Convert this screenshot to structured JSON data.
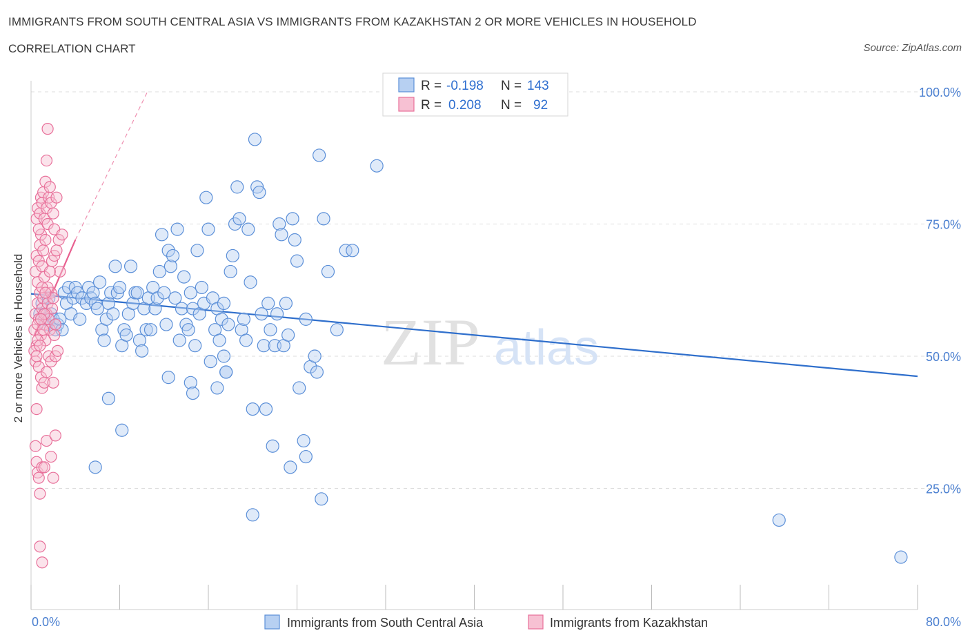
{
  "header": {
    "title": "IMMIGRANTS FROM SOUTH CENTRAL ASIA VS IMMIGRANTS FROM KAZAKHSTAN 2 OR MORE VEHICLES IN HOUSEHOLD",
    "subtitle": "CORRELATION CHART",
    "source": "Source: ZipAtlas.com"
  },
  "watermark": {
    "zip": "ZIP",
    "atlas": "atlas"
  },
  "legend": {
    "series1": {
      "r_label": "R =",
      "r_value": "-0.198",
      "n_label": "N =",
      "n_value": "143"
    },
    "series2": {
      "r_label": "R =",
      "r_value": "0.208",
      "n_label": "N =",
      "n_value": "92"
    }
  },
  "colors": {
    "blue": "#5b8fd8",
    "blue_fill": "#b7d0f2",
    "blue_line": "#2f6fcc",
    "pink": "#e8709a",
    "pink_fill": "#f7c1d3",
    "pink_line": "#e8608f",
    "axis_text": "#4a7fd0",
    "grid": "#dcdcdc"
  },
  "chart_data": {
    "type": "scatter",
    "xlabel": "",
    "ylabel": "2 or more Vehicles in Household",
    "xlim": [
      0,
      80
    ],
    "ylim": [
      0,
      100
    ],
    "x_tick_labels": [
      "0.0%",
      "80.0%"
    ],
    "y_ticks": [
      25,
      50,
      75,
      100
    ],
    "y_tick_labels": [
      "25.0%",
      "50.0%",
      "75.0%",
      "100.0%"
    ],
    "grid": true,
    "legend_position": "top-center",
    "series": [
      {
        "name": "Immigrants from South Central Asia",
        "color": "#5b8fd8",
        "trend": {
          "x": [
            0,
            80
          ],
          "y": [
            61.8,
            46.2
          ]
        },
        "points": [
          [
            0.8,
            58
          ],
          [
            1.0,
            60
          ],
          [
            1.2,
            57
          ],
          [
            1.4,
            56
          ],
          [
            1.6,
            61
          ],
          [
            1.8,
            58
          ],
          [
            2.0,
            57
          ],
          [
            2.2,
            55
          ],
          [
            2.4,
            56
          ],
          [
            2.6,
            57
          ],
          [
            2.8,
            55
          ],
          [
            3.0,
            62
          ],
          [
            3.2,
            60
          ],
          [
            3.4,
            63
          ],
          [
            3.6,
            58
          ],
          [
            3.8,
            61
          ],
          [
            4.0,
            63
          ],
          [
            4.2,
            62
          ],
          [
            4.4,
            57
          ],
          [
            4.6,
            61
          ],
          [
            5.0,
            60
          ],
          [
            5.2,
            63
          ],
          [
            5.4,
            61
          ],
          [
            5.6,
            62
          ],
          [
            5.8,
            60
          ],
          [
            6.0,
            59
          ],
          [
            6.2,
            64
          ],
          [
            6.4,
            55
          ],
          [
            6.6,
            53
          ],
          [
            6.8,
            57
          ],
          [
            7.0,
            60
          ],
          [
            7.2,
            62
          ],
          [
            7.4,
            58
          ],
          [
            7.6,
            67
          ],
          [
            7.8,
            62
          ],
          [
            8.0,
            63
          ],
          [
            8.2,
            52
          ],
          [
            8.4,
            55
          ],
          [
            8.6,
            54
          ],
          [
            8.8,
            58
          ],
          [
            9.0,
            67
          ],
          [
            9.2,
            60
          ],
          [
            9.4,
            62
          ],
          [
            9.6,
            62
          ],
          [
            9.8,
            53
          ],
          [
            10.0,
            51
          ],
          [
            10.2,
            59
          ],
          [
            10.4,
            55
          ],
          [
            10.6,
            61
          ],
          [
            10.8,
            55
          ],
          [
            11.0,
            63
          ],
          [
            11.2,
            59
          ],
          [
            11.4,
            61
          ],
          [
            11.6,
            66
          ],
          [
            11.8,
            73
          ],
          [
            12.0,
            62
          ],
          [
            12.2,
            56
          ],
          [
            12.4,
            70
          ],
          [
            12.6,
            67
          ],
          [
            12.8,
            69
          ],
          [
            13.0,
            61
          ],
          [
            13.2,
            74
          ],
          [
            13.4,
            53
          ],
          [
            13.6,
            59
          ],
          [
            13.8,
            65
          ],
          [
            14.0,
            56
          ],
          [
            14.2,
            55
          ],
          [
            14.4,
            62
          ],
          [
            14.6,
            59
          ],
          [
            14.8,
            52
          ],
          [
            15.0,
            70
          ],
          [
            15.2,
            58
          ],
          [
            15.4,
            63
          ],
          [
            15.6,
            60
          ],
          [
            15.8,
            80
          ],
          [
            16.0,
            74
          ],
          [
            16.2,
            49
          ],
          [
            16.4,
            61
          ],
          [
            16.6,
            55
          ],
          [
            16.8,
            59
          ],
          [
            17.0,
            53
          ],
          [
            17.2,
            57
          ],
          [
            17.4,
            60
          ],
          [
            17.6,
            47
          ],
          [
            17.8,
            56
          ],
          [
            18.0,
            66
          ],
          [
            18.2,
            69
          ],
          [
            18.4,
            75
          ],
          [
            18.6,
            82
          ],
          [
            18.8,
            76
          ],
          [
            19.0,
            55
          ],
          [
            19.2,
            57
          ],
          [
            19.4,
            53
          ],
          [
            19.6,
            74
          ],
          [
            19.8,
            64
          ],
          [
            20.0,
            40
          ],
          [
            20.2,
            91
          ],
          [
            20.4,
            82
          ],
          [
            20.6,
            81
          ],
          [
            20.8,
            58
          ],
          [
            21.0,
            52
          ],
          [
            21.2,
            40
          ],
          [
            21.4,
            60
          ],
          [
            21.6,
            55
          ],
          [
            21.8,
            33
          ],
          [
            22.0,
            52
          ],
          [
            22.2,
            58
          ],
          [
            22.4,
            75
          ],
          [
            22.6,
            73
          ],
          [
            22.8,
            52
          ],
          [
            23.0,
            60
          ],
          [
            23.2,
            54
          ],
          [
            23.4,
            29
          ],
          [
            23.6,
            76
          ],
          [
            23.8,
            72
          ],
          [
            24.0,
            68
          ],
          [
            24.2,
            44
          ],
          [
            24.6,
            34
          ],
          [
            24.8,
            31
          ],
          [
            25.2,
            48
          ],
          [
            25.6,
            50
          ],
          [
            25.8,
            47
          ],
          [
            26.0,
            88
          ],
          [
            26.2,
            23
          ],
          [
            26.4,
            76
          ],
          [
            26.8,
            66
          ],
          [
            27.6,
            55
          ],
          [
            28.4,
            70
          ],
          [
            29.0,
            70
          ],
          [
            31.2,
            86
          ],
          [
            5.8,
            29
          ],
          [
            7.0,
            42
          ],
          [
            8.2,
            36
          ],
          [
            12.4,
            46
          ],
          [
            14.4,
            45
          ],
          [
            14.6,
            43
          ],
          [
            20.0,
            20
          ],
          [
            16.8,
            44
          ],
          [
            17.4,
            50
          ],
          [
            17.6,
            47
          ],
          [
            67.5,
            19
          ],
          [
            78.5,
            12
          ],
          [
            24.8,
            57
          ]
        ]
      },
      {
        "name": "Immigrants from Kazakhstan",
        "color": "#e8709a",
        "trend": {
          "x": [
            0.3,
            4.0
          ],
          "y": [
            54.0,
            72.0
          ],
          "dashed_to": {
            "x": 10.5,
            "y": 100
          }
        },
        "points": [
          [
            0.3,
            55
          ],
          [
            0.4,
            58
          ],
          [
            0.5,
            52
          ],
          [
            0.6,
            60
          ],
          [
            0.7,
            57
          ],
          [
            0.8,
            62
          ],
          [
            0.9,
            54
          ],
          [
            1.0,
            59
          ],
          [
            1.1,
            61
          ],
          [
            1.2,
            56
          ],
          [
            1.3,
            53
          ],
          [
            1.4,
            58
          ],
          [
            1.5,
            60
          ],
          [
            1.6,
            57
          ],
          [
            1.7,
            55
          ],
          [
            1.8,
            62
          ],
          [
            1.9,
            59
          ],
          [
            2.0,
            61
          ],
          [
            2.1,
            54
          ],
          [
            2.2,
            56
          ],
          [
            0.4,
            66
          ],
          [
            0.5,
            69
          ],
          [
            0.6,
            64
          ],
          [
            0.7,
            68
          ],
          [
            0.8,
            71
          ],
          [
            0.9,
            73
          ],
          [
            1.0,
            67
          ],
          [
            1.1,
            70
          ],
          [
            1.2,
            65
          ],
          [
            1.3,
            72
          ],
          [
            0.5,
            76
          ],
          [
            0.6,
            78
          ],
          [
            0.7,
            74
          ],
          [
            0.8,
            77
          ],
          [
            0.9,
            80
          ],
          [
            1.0,
            79
          ],
          [
            1.1,
            81
          ],
          [
            1.2,
            76
          ],
          [
            1.3,
            83
          ],
          [
            1.4,
            78
          ],
          [
            1.5,
            75
          ],
          [
            1.6,
            80
          ],
          [
            1.7,
            82
          ],
          [
            1.8,
            79
          ],
          [
            2.0,
            77
          ],
          [
            2.1,
            74
          ],
          [
            2.3,
            80
          ],
          [
            1.4,
            87
          ],
          [
            1.5,
            93
          ],
          [
            2.6,
            66
          ],
          [
            0.3,
            51
          ],
          [
            0.4,
            49
          ],
          [
            0.5,
            50
          ],
          [
            0.6,
            53
          ],
          [
            0.7,
            48
          ],
          [
            0.8,
            52
          ],
          [
            0.9,
            46
          ],
          [
            1.0,
            44
          ],
          [
            1.2,
            45
          ],
          [
            1.4,
            47
          ],
          [
            1.6,
            50
          ],
          [
            1.8,
            49
          ],
          [
            2.0,
            45
          ],
          [
            2.2,
            50
          ],
          [
            2.4,
            51
          ],
          [
            0.5,
            40
          ],
          [
            0.4,
            33
          ],
          [
            0.5,
            30
          ],
          [
            0.6,
            28
          ],
          [
            0.7,
            27
          ],
          [
            0.8,
            24
          ],
          [
            1.0,
            29
          ],
          [
            1.2,
            29
          ],
          [
            1.4,
            34
          ],
          [
            1.8,
            31
          ],
          [
            2.0,
            27
          ],
          [
            0.8,
            14
          ],
          [
            1.0,
            11
          ],
          [
            2.2,
            35
          ],
          [
            1.5,
            63
          ],
          [
            1.7,
            66
          ],
          [
            1.9,
            68
          ],
          [
            2.1,
            69
          ],
          [
            2.3,
            70
          ],
          [
            2.5,
            72
          ],
          [
            2.8,
            73
          ],
          [
            1.0,
            63
          ],
          [
            1.2,
            58
          ],
          [
            0.6,
            56
          ],
          [
            0.9,
            57
          ],
          [
            1.1,
            55
          ],
          [
            1.3,
            62
          ]
        ]
      }
    ]
  },
  "bottom_legend": {
    "series1": "Immigrants from South Central Asia",
    "series2": "Immigrants from Kazakhstan"
  }
}
